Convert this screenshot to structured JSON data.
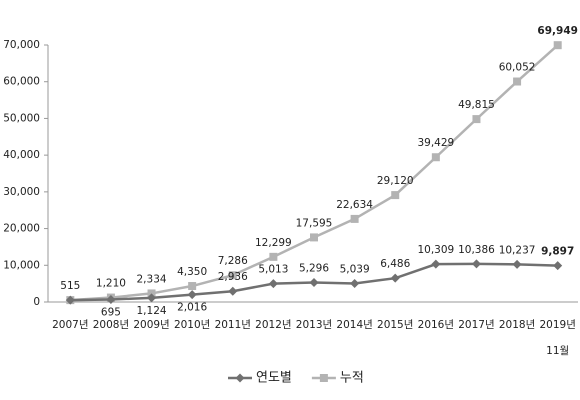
{
  "chart_data": {
    "type": "line",
    "categories": [
      "2007년",
      "2008년",
      "2009년",
      "2010년",
      "2011년",
      "2012년",
      "2013년",
      "2014년",
      "2015년",
      "2016년",
      "2017년",
      "2018년",
      "2019년\n11월"
    ],
    "series": [
      {
        "name": "연도별",
        "color": "#707070",
        "marker": "diamond",
        "values": [
          515,
          695,
          1124,
          2016,
          2936,
          5013,
          5296,
          5039,
          6486,
          10309,
          10386,
          10237,
          9897
        ],
        "value_labels": [
          null,
          "695",
          "1,124",
          "2,016",
          "2,936",
          "5,013",
          "5,296",
          "5,039",
          "6,486",
          "10,309",
          "10,386",
          "10,237",
          "9,897"
        ]
      },
      {
        "name": "누적",
        "color": "#b3b3b3",
        "marker": "square",
        "values": [
          515,
          1210,
          2334,
          4350,
          7286,
          12299,
          17595,
          22634,
          29120,
          39429,
          49815,
          60052,
          69949
        ],
        "value_labels": [
          "515",
          "1,210",
          "2,334",
          "4,350",
          "7,286",
          "12,299",
          "17,595",
          "22,634",
          "29,120",
          "39,429",
          "49,815",
          "60,052",
          "69,949"
        ]
      }
    ],
    "ylim": [
      0,
      70000
    ],
    "yticks": [
      0,
      {
        "value": 10000,
        "label": "10,000"
      },
      {
        "value": 20000,
        "label": "20,000"
      },
      {
        "value": 30000,
        "label": "30,000"
      },
      {
        "value": 40000,
        "label": "40,000"
      },
      {
        "value": 50000,
        "label": "50,000"
      },
      {
        "value": 60000,
        "label": "60,000"
      },
      {
        "value": 70000,
        "label": "70,000"
      }
    ],
    "grid": false,
    "legend": "bottom",
    "bold_last_label": true
  }
}
